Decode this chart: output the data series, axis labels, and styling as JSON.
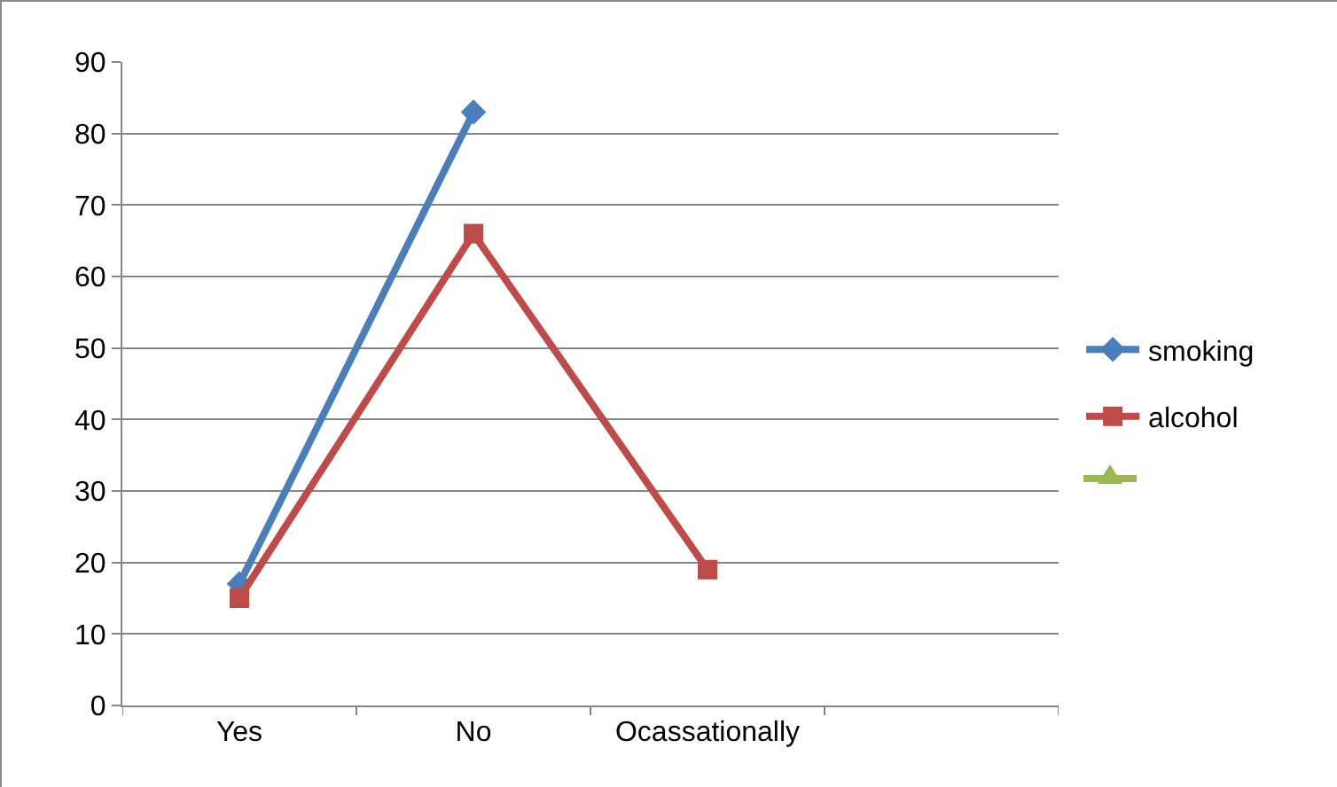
{
  "chart_data": {
    "type": "line",
    "categories": [
      "Yes",
      "No",
      "Ocassationally",
      null
    ],
    "series": [
      {
        "name": "smoking",
        "color": "#4a7ebb",
        "marker": "diamond",
        "values": [
          17,
          83,
          null,
          null
        ]
      },
      {
        "name": "alcohol",
        "color": "#be4b48",
        "marker": "square",
        "values": [
          15,
          66,
          19,
          null
        ]
      }
    ],
    "ylim": [
      0,
      90
    ],
    "yticks": [
      0,
      10,
      20,
      30,
      40,
      50,
      60,
      70,
      80,
      90
    ],
    "grid": "y",
    "legend": "right"
  }
}
